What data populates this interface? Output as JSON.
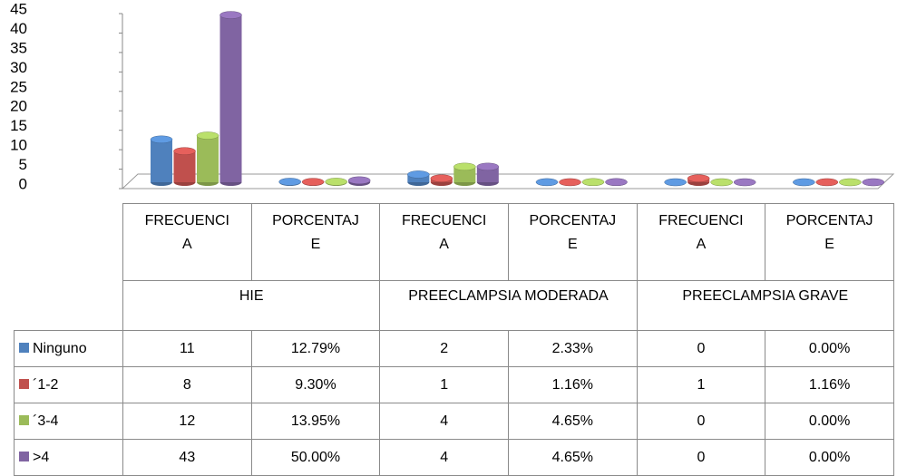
{
  "chart_data": {
    "type": "bar3d",
    "categories": [
      "FRECUENCIA",
      "PORCENTAJE",
      "FRECUENCIA",
      "PORCENTAJE",
      "FRECUENCIA",
      "PORCENTAJE"
    ],
    "groups": [
      "HIE",
      "PREECLAMPSIA MODERADA",
      "PREECLAMPSIA GRAVE"
    ],
    "series": [
      {
        "name": "Ninguno",
        "color": "#4f81bd",
        "values": [
          11,
          0.1279,
          2,
          0.0233,
          0,
          0
        ],
        "value_labels": [
          "11",
          "12.79%",
          "2",
          "2.33%",
          "0",
          "0.00%"
        ]
      },
      {
        "name": "´1-2",
        "color": "#c0504d",
        "values": [
          8,
          0.093,
          1,
          0.0116,
          1,
          0.0116
        ],
        "value_labels": [
          "8",
          "9.30%",
          "1",
          "1.16%",
          "1",
          "1.16%"
        ]
      },
      {
        "name": "´3-4",
        "color": "#9bbb59",
        "values": [
          12,
          0.1395,
          4,
          0.0465,
          0,
          0
        ],
        "value_labels": [
          "12",
          "13.95%",
          "4",
          "4.65%",
          "0",
          "0.00%"
        ]
      },
      {
        "name": ">4",
        "color": "#8064a2",
        "values": [
          43,
          0.5,
          4,
          0.0465,
          0,
          0
        ],
        "value_labels": [
          "43",
          "50.00%",
          "4",
          "4.65%",
          "0",
          "0.00%"
        ]
      }
    ],
    "ylim": [
      0,
      45
    ],
    "yticks": [
      0,
      5,
      10,
      15,
      20,
      25,
      30,
      35,
      40,
      45
    ]
  }
}
